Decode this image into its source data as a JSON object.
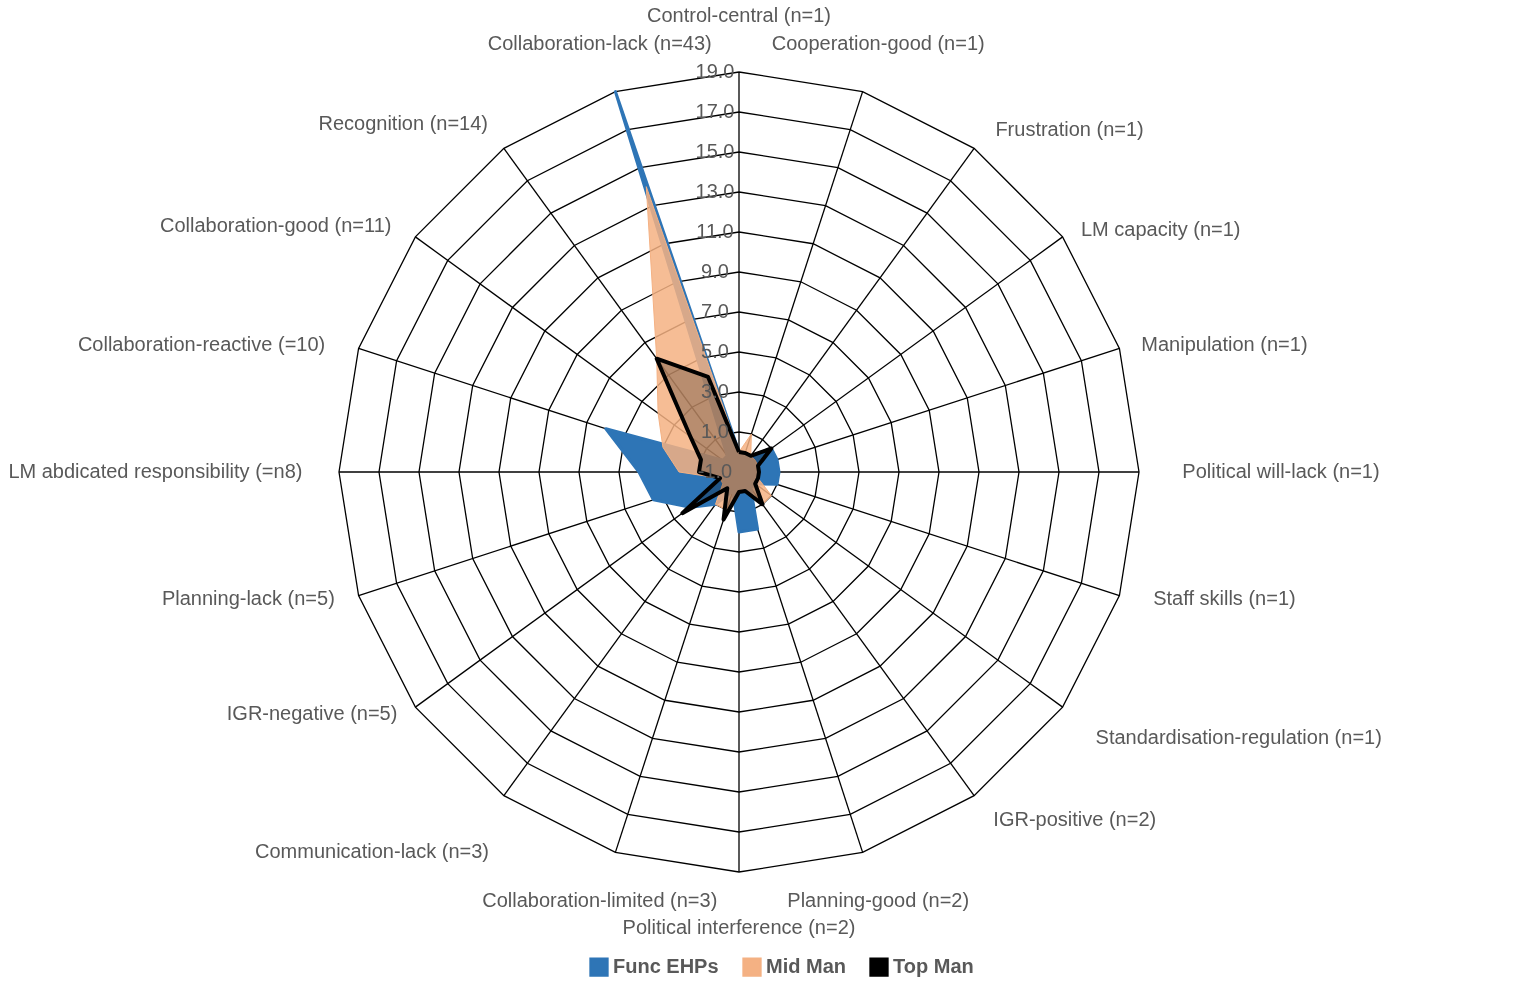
{
  "chart_data": {
    "type": "radar",
    "categories": [
      "Control-central (n=1)",
      "Cooperation-good (n=1)",
      "Frustration (n=1)",
      "LM capacity (n=1)",
      "Manipulation (n=1)",
      "Political will-lack (n=1)",
      "Staff skills (n=1)",
      "Standardisation-regulation (n=1)",
      "IGR-positive (n=2)",
      "Planning-good (n=2)",
      "Political interference (n=2)",
      "Collaboration-limited (n=3)",
      "Communication-lack (n=3)",
      "IGR-negative (n=5)",
      "Planning-lack (n=5)",
      "LM abdicated responsibility (=n8)",
      "Collaboration-reactive (=10)",
      "Collaboration-good (n=11)",
      "Recognition (n=14)",
      "Collaboration-lack (n=43)"
    ],
    "series": [
      {
        "name": "Func EHPs",
        "color": "#2e75b6",
        "values": [
          0,
          0,
          0,
          1,
          1,
          1,
          1,
          0,
          0,
          2,
          2,
          0,
          1,
          2,
          3.5,
          4,
          6,
          0,
          0,
          19
        ]
      },
      {
        "name": "Mid Man",
        "color": "#f4b183",
        "values": [
          0,
          1,
          0,
          0,
          0,
          0,
          0,
          1,
          1,
          0,
          0,
          1,
          1,
          0,
          0,
          2,
          3,
          4,
          6,
          14
        ]
      },
      {
        "name": "Top Man",
        "color": "#000000",
        "values": [
          0,
          0,
          0,
          1,
          0,
          0,
          0,
          0,
          1,
          0,
          0,
          1.5,
          0,
          2.5,
          0,
          1,
          1,
          2,
          6,
          4
        ]
      }
    ],
    "ylim": [
      -1,
      19
    ],
    "yticks": [
      {
        "value": -1,
        "label": "-1.0"
      },
      {
        "value": 1,
        "label": "1.0"
      },
      {
        "value": 3,
        "label": "3.0"
      },
      {
        "value": 5,
        "label": "5.0"
      },
      {
        "value": 7,
        "label": "7.0"
      },
      {
        "value": 9,
        "label": "9.0"
      },
      {
        "value": 11,
        "label": "11.0"
      },
      {
        "value": 13,
        "label": "13.0"
      },
      {
        "value": 15,
        "label": "15.0"
      },
      {
        "value": 17,
        "label": "17.0"
      },
      {
        "value": 19,
        "label": "19.0"
      }
    ],
    "grid": true,
    "legend": "bottom"
  }
}
